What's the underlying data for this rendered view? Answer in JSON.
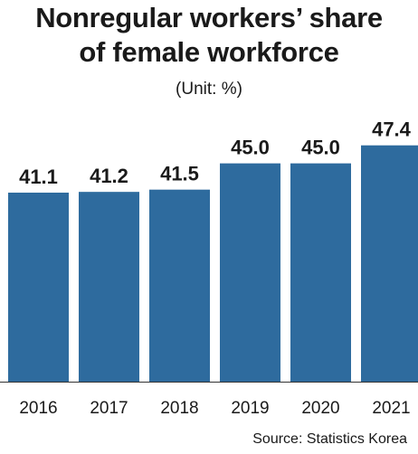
{
  "title_line1": "Nonregular workers’ share",
  "title_line2": "of female workforce",
  "unit": "(Unit: %)",
  "source": "Source: Statistics Korea",
  "chart_data": {
    "type": "bar",
    "categories": [
      "2016",
      "2017",
      "2018",
      "2019",
      "2020",
      "2021"
    ],
    "values": [
      41.1,
      41.2,
      41.5,
      45.0,
      45.0,
      47.4
    ],
    "labels": [
      "41.1",
      "41.2",
      "41.5",
      "45.0",
      "45.0",
      "47.4"
    ],
    "bar_color": "#2e6b9e",
    "grid": false,
    "legend": "none"
  }
}
